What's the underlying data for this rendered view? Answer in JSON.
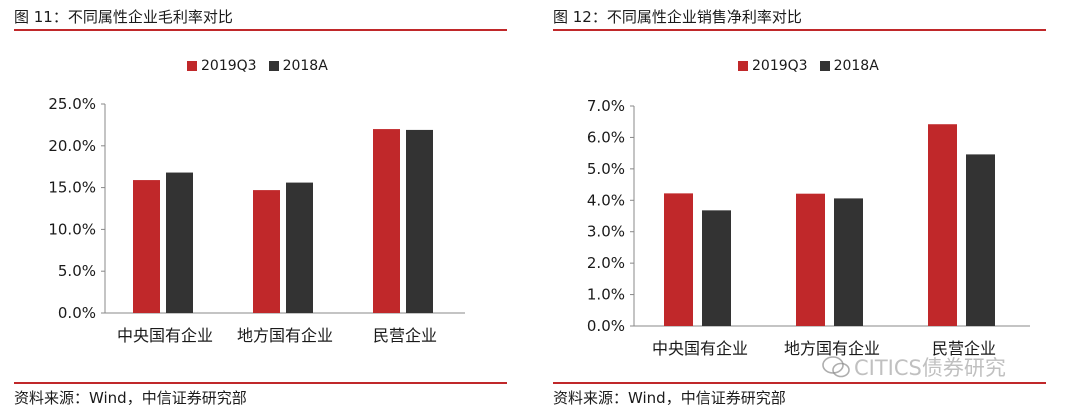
{
  "colors": {
    "series1": "#c0282a",
    "series2": "#333333",
    "rule": "#c0282a"
  },
  "left": {
    "title": "图 11：不同属性企业毛利率对比",
    "source": "资料来源：Wind，中信证券研究部"
  },
  "right": {
    "title": "图 12：不同属性企业销售净利率对比",
    "source": "资料来源：Wind，中信证券研究部"
  },
  "watermark": {
    "text": "CITICS债券研究",
    "icon": "wechat-icon"
  },
  "chart_data": [
    {
      "type": "bar",
      "title": "图 11：不同属性企业毛利率对比",
      "categories": [
        "中央国有企业",
        "地方国有企业",
        "民营企业"
      ],
      "series": [
        {
          "name": "2019Q3",
          "values": [
            15.9,
            14.7,
            22.0
          ]
        },
        {
          "name": "2018A",
          "values": [
            16.8,
            15.6,
            21.9
          ]
        }
      ],
      "ylim": [
        0,
        25
      ],
      "yticks": [
        "0.0%",
        "5.0%",
        "10.0%",
        "15.0%",
        "20.0%",
        "25.0%"
      ],
      "ytick_values": [
        0,
        5,
        10,
        15,
        20,
        25
      ],
      "legend": "top-center",
      "grid": false
    },
    {
      "type": "bar",
      "title": "图 12：不同属性企业销售净利率对比",
      "categories": [
        "中央国有企业",
        "地方国有企业",
        "民营企业"
      ],
      "series": [
        {
          "name": "2019Q3",
          "values": [
            4.22,
            4.21,
            6.42
          ]
        },
        {
          "name": "2018A",
          "values": [
            3.68,
            4.06,
            5.46
          ]
        }
      ],
      "ylim": [
        0,
        7
      ],
      "yticks": [
        "0.0%",
        "1.0%",
        "2.0%",
        "3.0%",
        "4.0%",
        "5.0%",
        "6.0%",
        "7.0%"
      ],
      "ytick_values": [
        0,
        1,
        2,
        3,
        4,
        5,
        6,
        7
      ],
      "legend": "top-center",
      "grid": false
    }
  ]
}
